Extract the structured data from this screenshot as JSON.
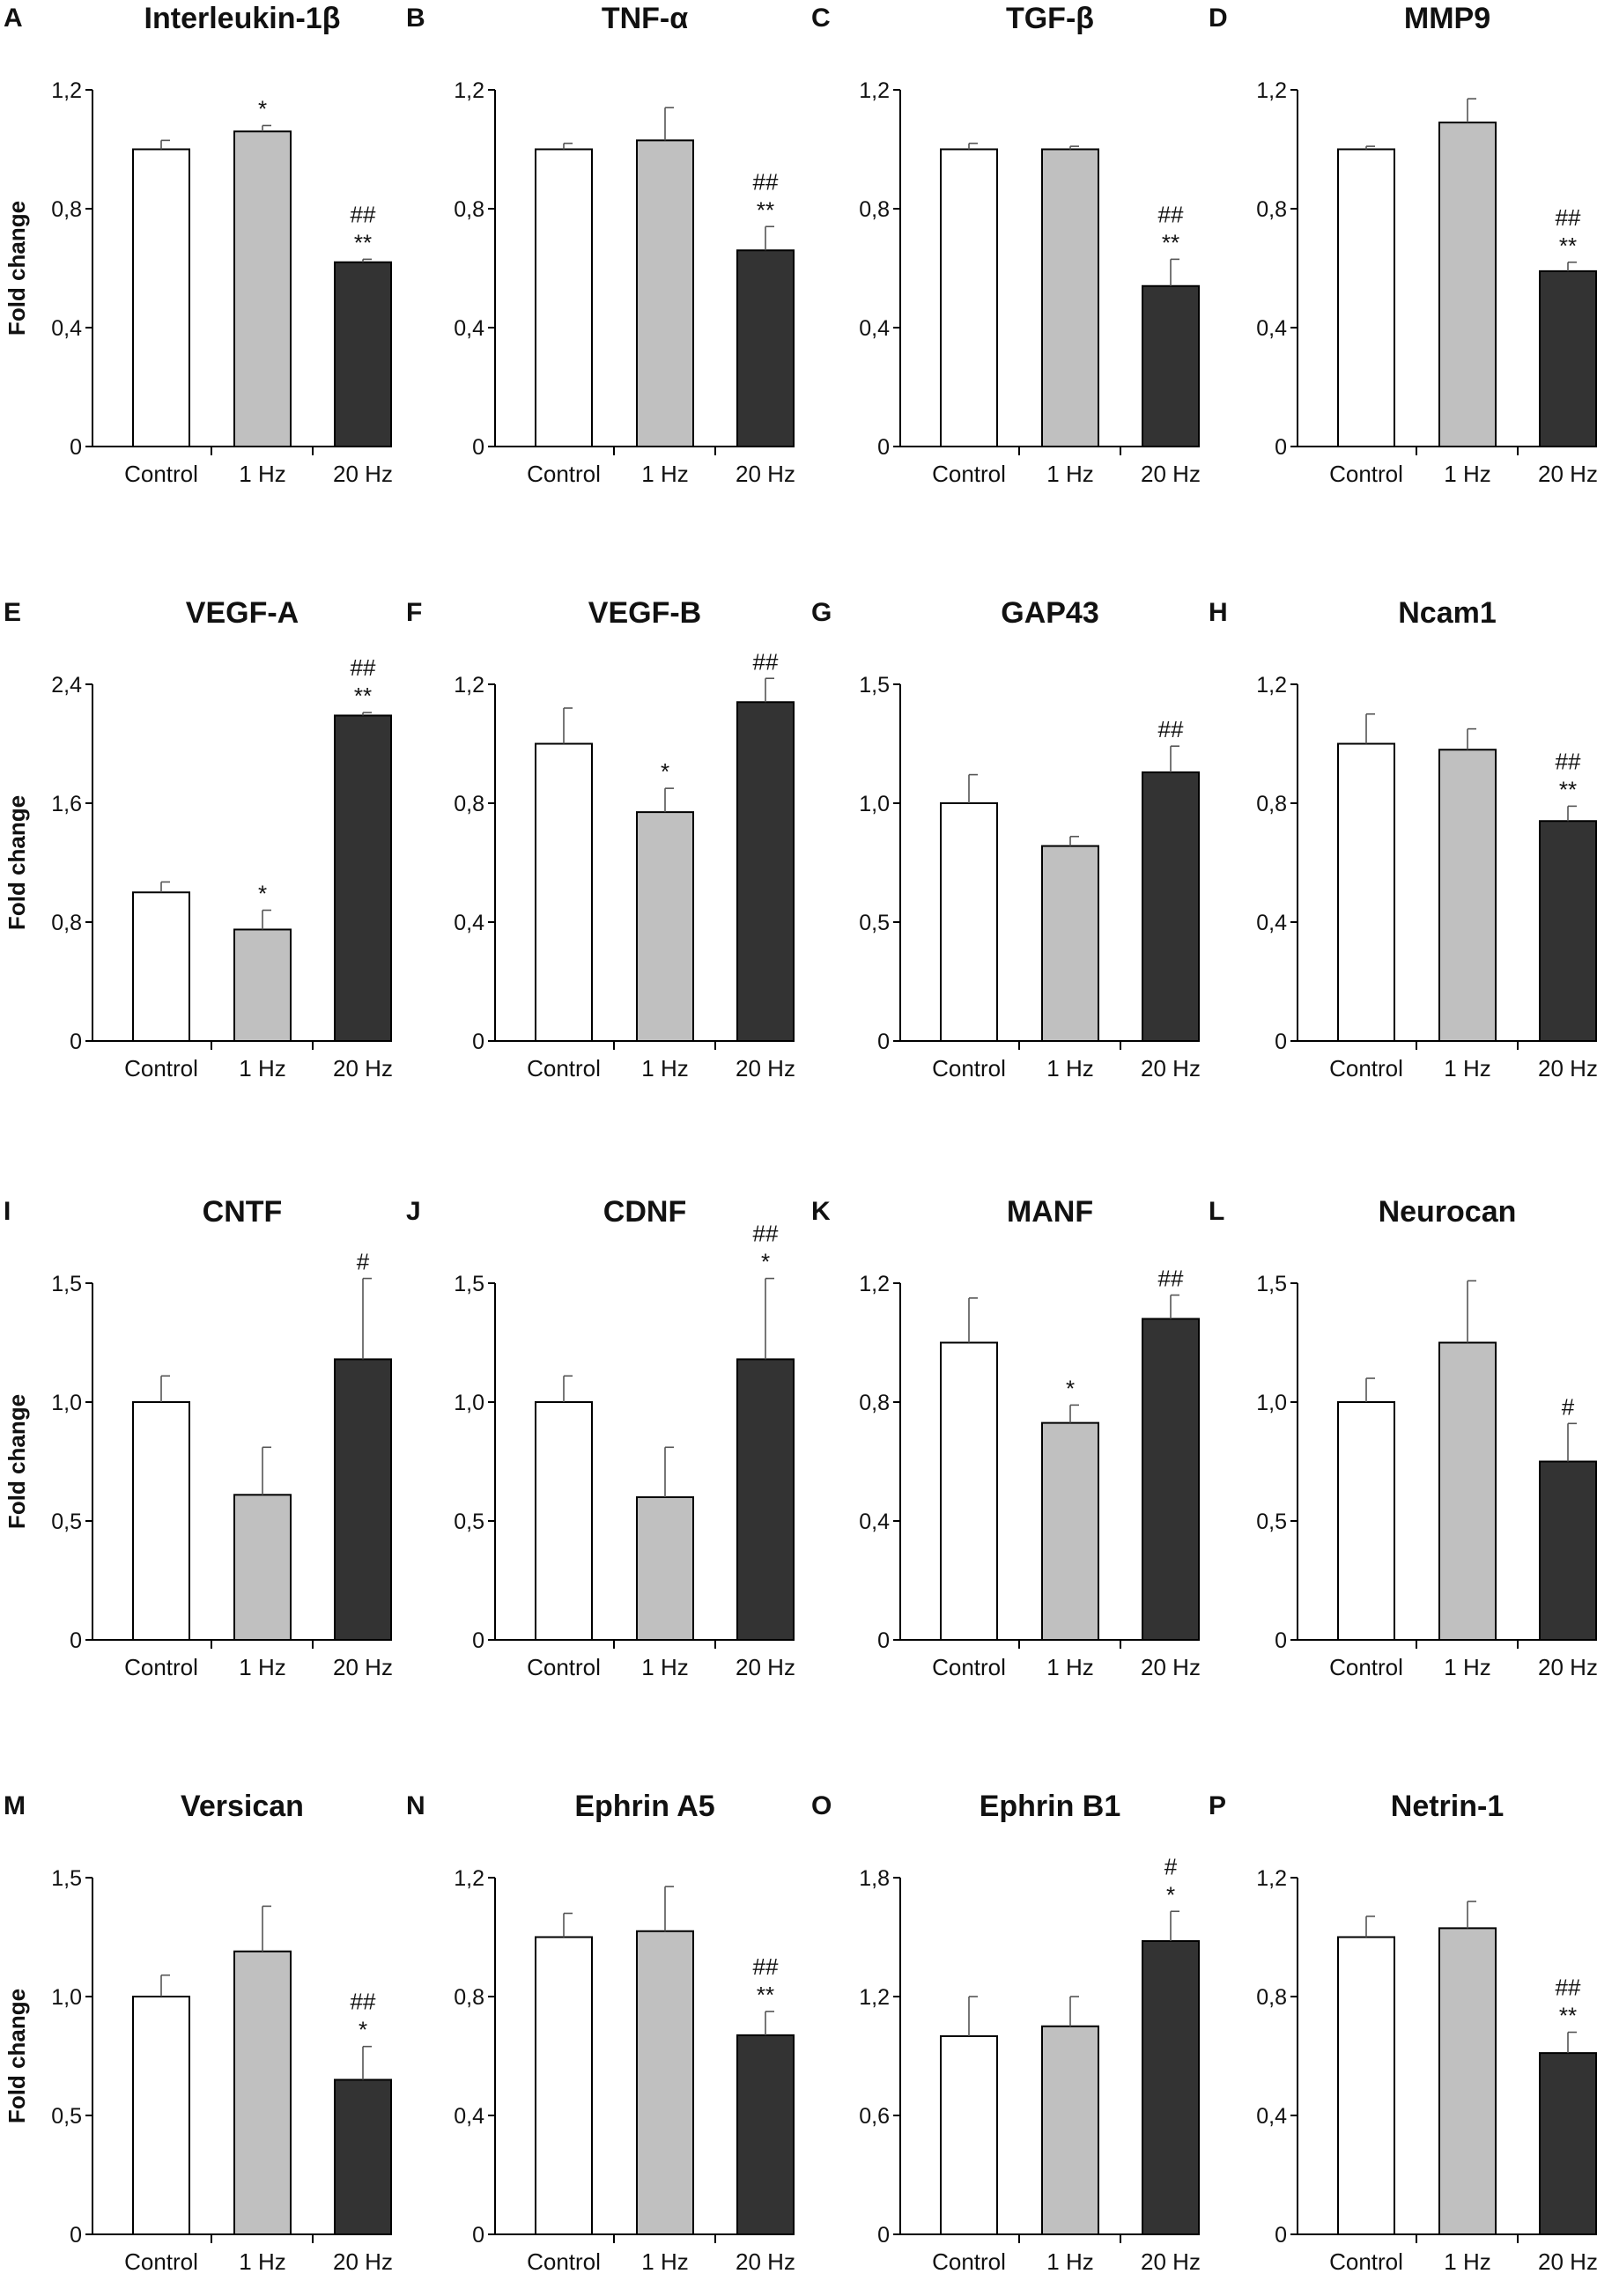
{
  "figure": {
    "y_axis_label": "Fold change",
    "bar_colors": {
      "Control": "#ffffff",
      "1 Hz": "#c0c0c0",
      "20 Hz": "#333333"
    }
  },
  "chart_data": [
    {
      "type": "bar",
      "panel": "A",
      "title": "Interleukin-1β",
      "ylabel": "Fold change",
      "categories": [
        "Control",
        "1 Hz",
        "20 Hz"
      ],
      "values": [
        1.0,
        1.06,
        0.62
      ],
      "errors": [
        0.03,
        0.02,
        0.01
      ],
      "ylim": [
        0,
        1.2
      ],
      "yticks": [
        0,
        0.4,
        0.8,
        1.2
      ],
      "ytick_labels": [
        "0",
        "0,4",
        "0,8",
        "1,2"
      ],
      "annotations": [
        [],
        [
          "*"
        ],
        [
          "##",
          "**"
        ]
      ]
    },
    {
      "type": "bar",
      "panel": "B",
      "title": "TNF-α",
      "ylabel": "",
      "categories": [
        "Control",
        "1 Hz",
        "20 Hz"
      ],
      "values": [
        1.0,
        1.03,
        0.66
      ],
      "errors": [
        0.02,
        0.11,
        0.08
      ],
      "ylim": [
        0,
        1.2
      ],
      "yticks": [
        0,
        0.4,
        0.8,
        1.2
      ],
      "ytick_labels": [
        "0",
        "0,4",
        "0,8",
        "1,2"
      ],
      "annotations": [
        [],
        [],
        [
          "##",
          "**"
        ]
      ]
    },
    {
      "type": "bar",
      "panel": "C",
      "title": "TGF-β",
      "ylabel": "",
      "categories": [
        "Control",
        "1 Hz",
        "20 Hz"
      ],
      "values": [
        1.0,
        1.0,
        0.54
      ],
      "errors": [
        0.02,
        0.01,
        0.09
      ],
      "ylim": [
        0,
        1.2
      ],
      "yticks": [
        0,
        0.4,
        0.8,
        1.2
      ],
      "ytick_labels": [
        "0",
        "0,4",
        "0,8",
        "1,2"
      ],
      "annotations": [
        [],
        [],
        [
          "##",
          "**"
        ]
      ]
    },
    {
      "type": "bar",
      "panel": "D",
      "title": "MMP9",
      "ylabel": "",
      "categories": [
        "Control",
        "1 Hz",
        "20 Hz"
      ],
      "values": [
        1.0,
        1.09,
        0.59
      ],
      "errors": [
        0.01,
        0.08,
        0.03
      ],
      "ylim": [
        0,
        1.2
      ],
      "yticks": [
        0,
        0.4,
        0.8,
        1.2
      ],
      "ytick_labels": [
        "0",
        "0,4",
        "0,8",
        "1,2"
      ],
      "annotations": [
        [],
        [],
        [
          "##",
          "**"
        ]
      ]
    },
    {
      "type": "bar",
      "panel": "E",
      "title": "VEGF-A",
      "ylabel": "Fold change",
      "categories": [
        "Control",
        "1 Hz",
        "20 Hz"
      ],
      "values": [
        1.0,
        0.75,
        2.19
      ],
      "errors": [
        0.07,
        0.13,
        0.02
      ],
      "ylim": [
        0,
        2.4
      ],
      "yticks": [
        0,
        0.8,
        1.6,
        2.4
      ],
      "ytick_labels": [
        "0",
        "0,8",
        "1,6",
        "2,4"
      ],
      "annotations": [
        [],
        [
          "*"
        ],
        [
          "##",
          "**"
        ]
      ]
    },
    {
      "type": "bar",
      "panel": "F",
      "title": "VEGF-B",
      "ylabel": "",
      "categories": [
        "Control",
        "1 Hz",
        "20 Hz"
      ],
      "values": [
        1.0,
        0.77,
        1.14
      ],
      "errors": [
        0.12,
        0.08,
        0.08
      ],
      "ylim": [
        0,
        1.2
      ],
      "yticks": [
        0,
        0.4,
        0.8,
        1.2
      ],
      "ytick_labels": [
        "0",
        "0,4",
        "0,8",
        "1,2"
      ],
      "annotations": [
        [],
        [
          "*"
        ],
        [
          "##"
        ]
      ]
    },
    {
      "type": "bar",
      "panel": "G",
      "title": "GAP43",
      "ylabel": "",
      "categories": [
        "Control",
        "1 Hz",
        "20 Hz"
      ],
      "values": [
        1.0,
        0.82,
        1.13
      ],
      "errors": [
        0.12,
        0.04,
        0.11
      ],
      "ylim": [
        0,
        1.5
      ],
      "yticks": [
        0,
        0.5,
        1.0,
        1.5
      ],
      "ytick_labels": [
        "0",
        "0,5",
        "1,0",
        "1,5"
      ],
      "annotations": [
        [],
        [],
        [
          "##"
        ]
      ]
    },
    {
      "type": "bar",
      "panel": "H",
      "title": "Ncam1",
      "ylabel": "",
      "categories": [
        "Control",
        "1 Hz",
        "20 Hz"
      ],
      "values": [
        1.0,
        0.98,
        0.74
      ],
      "errors": [
        0.1,
        0.07,
        0.05
      ],
      "ylim": [
        0,
        1.2
      ],
      "yticks": [
        0,
        0.4,
        0.8,
        1.2
      ],
      "ytick_labels": [
        "0",
        "0,4",
        "0,8",
        "1,2"
      ],
      "annotations": [
        [],
        [],
        [
          "##",
          "**"
        ]
      ]
    },
    {
      "type": "bar",
      "panel": "I",
      "title": "CNTF",
      "ylabel": "Fold change",
      "categories": [
        "Control",
        "1 Hz",
        "20 Hz"
      ],
      "values": [
        1.0,
        0.61,
        1.18
      ],
      "errors": [
        0.11,
        0.2,
        0.34
      ],
      "ylim": [
        0,
        1.5
      ],
      "yticks": [
        0,
        0.5,
        1.0,
        1.5
      ],
      "ytick_labels": [
        "0",
        "0,5",
        "1,0",
        "1,5"
      ],
      "annotations": [
        [],
        [],
        [
          "#"
        ]
      ]
    },
    {
      "type": "bar",
      "panel": "J",
      "title": "CDNF",
      "ylabel": "",
      "categories": [
        "Control",
        "1 Hz",
        "20 Hz"
      ],
      "values": [
        1.0,
        0.6,
        1.18
      ],
      "errors": [
        0.11,
        0.21,
        0.34
      ],
      "ylim": [
        0,
        1.5
      ],
      "yticks": [
        0,
        0.5,
        1.0,
        1.5
      ],
      "ytick_labels": [
        "0",
        "0,5",
        "1,0",
        "1,5"
      ],
      "annotations": [
        [],
        [],
        [
          "##",
          "*"
        ]
      ]
    },
    {
      "type": "bar",
      "panel": "K",
      "title": "MANF",
      "ylabel": "",
      "categories": [
        "Control",
        "1 Hz",
        "20 Hz"
      ],
      "values": [
        1.0,
        0.73,
        1.08
      ],
      "errors": [
        0.15,
        0.06,
        0.08
      ],
      "ylim": [
        0,
        1.2
      ],
      "yticks": [
        0,
        0.4,
        0.8,
        1.2
      ],
      "ytick_labels": [
        "0",
        "0,4",
        "0,8",
        "1,2"
      ],
      "annotations": [
        [],
        [
          "*"
        ],
        [
          "##"
        ]
      ]
    },
    {
      "type": "bar",
      "panel": "L",
      "title": "Neurocan",
      "ylabel": "",
      "categories": [
        "Control",
        "1 Hz",
        "20 Hz"
      ],
      "values": [
        1.0,
        1.25,
        0.75
      ],
      "errors": [
        0.1,
        0.26,
        0.16
      ],
      "ylim": [
        0,
        1.5
      ],
      "yticks": [
        0,
        0.5,
        1.0,
        1.5
      ],
      "ytick_labels": [
        "0",
        "0,5",
        "1,0",
        "1,5"
      ],
      "annotations": [
        [],
        [],
        [
          "#"
        ]
      ]
    },
    {
      "type": "bar",
      "panel": "M",
      "title": "Versican",
      "ylabel": "Fold change",
      "categories": [
        "Control",
        "1 Hz",
        "20 Hz"
      ],
      "values": [
        1.0,
        1.19,
        0.65
      ],
      "errors": [
        0.09,
        0.19,
        0.14
      ],
      "ylim": [
        0,
        1.5
      ],
      "yticks": [
        0,
        0.5,
        1.0,
        1.5
      ],
      "ytick_labels": [
        "0",
        "0,5",
        "1,0",
        "1,5"
      ],
      "annotations": [
        [],
        [],
        [
          "##",
          "*"
        ]
      ]
    },
    {
      "type": "bar",
      "panel": "N",
      "title": "Ephrin A5",
      "ylabel": "",
      "categories": [
        "Control",
        "1 Hz",
        "20 Hz"
      ],
      "values": [
        1.0,
        1.02,
        0.67
      ],
      "errors": [
        0.08,
        0.15,
        0.08
      ],
      "ylim": [
        0,
        1.2
      ],
      "yticks": [
        0,
        0.4,
        0.8,
        1.2
      ],
      "ytick_labels": [
        "0",
        "0,4",
        "0,8",
        "1,2"
      ],
      "annotations": [
        [],
        [],
        [
          "##",
          "**"
        ]
      ]
    },
    {
      "type": "bar",
      "panel": "O",
      "title": "Ephrin B1",
      "ylabel": "",
      "categories": [
        "Control",
        "1 Hz",
        "20 Hz"
      ],
      "values": [
        1.0,
        1.05,
        1.48
      ],
      "errors": [
        0.2,
        0.15,
        0.15
      ],
      "ylim": [
        0,
        1.8
      ],
      "yticks": [
        0,
        0.6,
        1.2,
        1.8
      ],
      "ytick_labels": [
        "0",
        "0,6",
        "1,2",
        "1,8"
      ],
      "annotations": [
        [],
        [],
        [
          "#",
          "*"
        ]
      ]
    },
    {
      "type": "bar",
      "panel": "P",
      "title": "Netrin-1",
      "ylabel": "",
      "categories": [
        "Control",
        "1 Hz",
        "20 Hz"
      ],
      "values": [
        1.0,
        1.03,
        0.61
      ],
      "errors": [
        0.07,
        0.09,
        0.07
      ],
      "ylim": [
        0,
        1.2
      ],
      "yticks": [
        0,
        0.4,
        0.8,
        1.2
      ],
      "ytick_labels": [
        "0",
        "0,4",
        "0,8",
        "1,2"
      ],
      "annotations": [
        [],
        [],
        [
          "##",
          "**"
        ]
      ]
    }
  ]
}
